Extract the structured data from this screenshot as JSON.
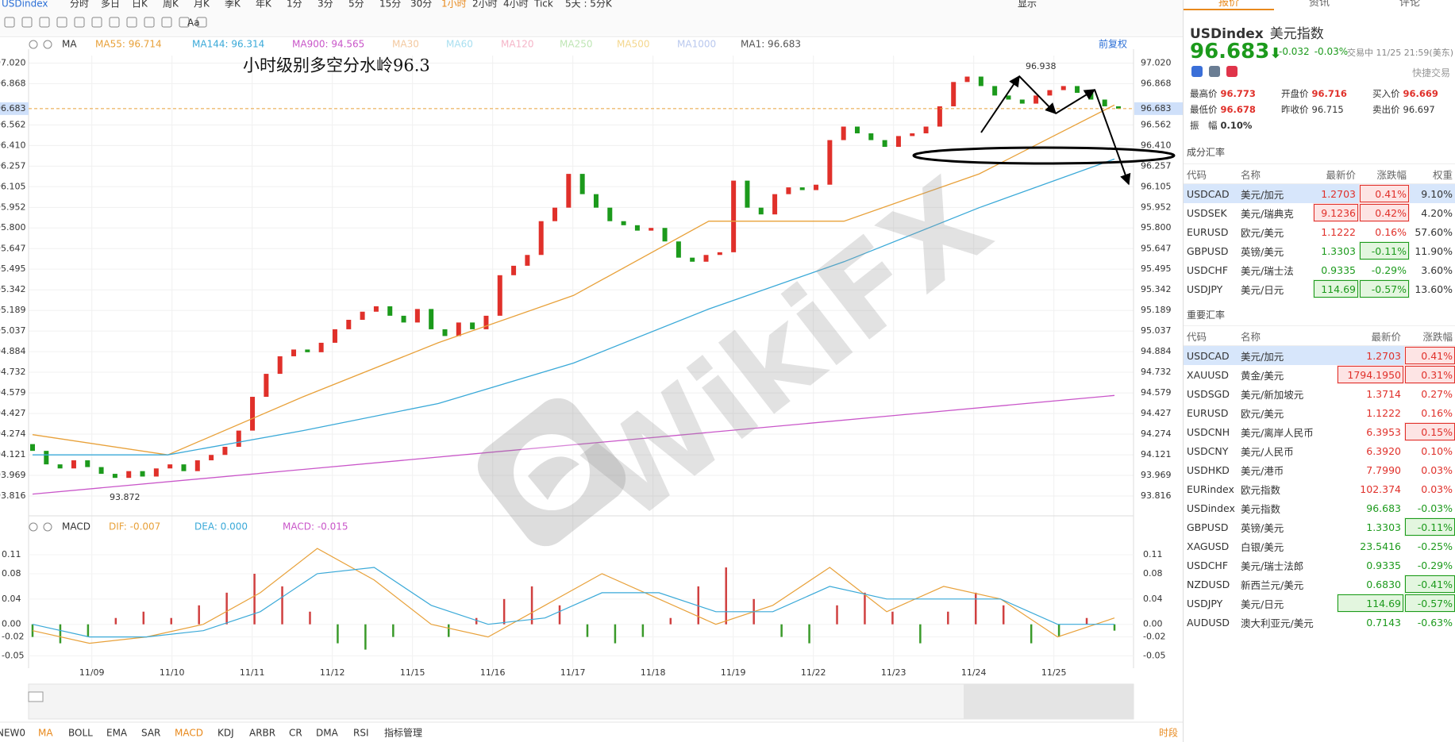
{
  "toolbar": {
    "symbol": "USDindex",
    "periods": [
      "分时",
      "多日",
      "日K",
      "周K",
      "月K",
      "季K",
      "年K",
      "1分",
      "3分",
      "5分",
      "15分",
      "30分",
      "1小时",
      "2小时",
      "4小时",
      "Tick",
      "5天 : 5分K"
    ],
    "display": "显示",
    "font_tool": "Aa"
  },
  "main_chart": {
    "indicator": "MA",
    "ma_legend": [
      {
        "label": "MA55: 96.714",
        "color": "#e8a13a"
      },
      {
        "label": "MA144: 96.314",
        "color": "#3aa9d8"
      },
      {
        "label": "MA900: 94.565",
        "color": "#c956c9"
      },
      {
        "label": "MA30",
        "color": "#f3c9a0"
      },
      {
        "label": "MA60",
        "color": "#a8dff0"
      },
      {
        "label": "MA120",
        "color": "#f5b5c8"
      },
      {
        "label": "MA250",
        "color": "#bfe6b5"
      },
      {
        "label": "MA500",
        "color": "#f4d78e"
      },
      {
        "label": "MA1000",
        "color": "#b9c8ee"
      },
      {
        "label": "MA1: 96.683",
        "color": "#555555"
      }
    ],
    "adjust": "前复权",
    "annotation": "小时级别多空分水岭96.3",
    "price_ticks": [
      "97.020",
      "96.868",
      "96.562",
      "96.410",
      "96.257",
      "96.105",
      "95.952",
      "95.800",
      "95.647",
      "95.495",
      "95.342",
      "95.189",
      "95.037",
      "94.884",
      "94.732",
      "94.579",
      "94.427",
      "94.274",
      "94.121",
      "93.969",
      "93.816"
    ],
    "current_price": "96.683",
    "high_label": "96.938",
    "low_label": "93.872",
    "dates": [
      "11/09",
      "11/10",
      "11/11",
      "11/12",
      "11/15",
      "11/16",
      "11/17",
      "11/18",
      "11/19",
      "11/22",
      "11/23",
      "11/24",
      "11/25"
    ],
    "watermark": "WikiFX"
  },
  "series": {
    "first_open": 94.2,
    "closes": [
      94.15,
      94.05,
      94.02,
      94.08,
      94.03,
      93.98,
      93.95,
      94.0,
      93.96,
      94.02,
      94.05,
      94.0,
      94.08,
      94.12,
      94.18,
      94.3,
      94.55,
      94.72,
      94.85,
      94.9,
      94.88,
      94.95,
      95.05,
      95.12,
      95.18,
      95.22,
      95.15,
      95.1,
      95.2,
      95.05,
      95.0,
      95.1,
      95.05,
      95.15,
      95.45,
      95.52,
      95.6,
      95.85,
      95.95,
      96.2,
      96.05,
      95.95,
      95.85,
      95.82,
      95.78,
      95.8,
      95.7,
      95.58,
      95.55,
      95.6,
      95.62,
      96.15,
      95.95,
      95.9,
      96.05,
      96.1,
      96.08,
      96.12,
      96.45,
      96.55,
      96.5,
      96.45,
      96.4,
      96.48,
      96.5,
      96.55,
      96.7,
      96.88,
      96.92,
      96.85,
      96.78,
      96.75,
      96.72,
      96.78,
      96.82,
      96.85,
      96.8,
      96.75,
      96.7,
      96.683
    ],
    "ma55": [
      94.27,
      94.12,
      94.55,
      94.95,
      95.3,
      95.85,
      95.85,
      96.2,
      96.71
    ],
    "ma144": [
      94.12,
      94.12,
      94.3,
      94.5,
      94.8,
      95.2,
      95.55,
      95.95,
      96.31
    ],
    "ma900": [
      93.83,
      94.56
    ]
  },
  "macd_chart": {
    "indicator": "MACD",
    "legend": [
      {
        "label": "DIF: -0.007",
        "color": "#e8a13a"
      },
      {
        "label": "DEA: 0.000",
        "color": "#3aa9d8"
      },
      {
        "label": "MACD: -0.015",
        "color": "#c956c9"
      }
    ],
    "ticks": [
      "0.11",
      "0.08",
      "0.04",
      "0.00",
      "-0.02",
      "-0.05"
    ],
    "histogram": [
      -0.02,
      -0.03,
      -0.02,
      0.01,
      0.02,
      0.01,
      0.03,
      0.05,
      0.08,
      0.06,
      0.02,
      -0.03,
      -0.04,
      -0.02,
      0.0,
      -0.02,
      0.01,
      0.04,
      0.06,
      0.03,
      -0.02,
      -0.03,
      -0.02,
      0.01,
      0.06,
      0.09,
      0.04,
      -0.02,
      -0.03,
      0.03,
      0.05,
      0.02,
      -0.03,
      0.02,
      0.05,
      0.03,
      -0.03,
      -0.02,
      0.01,
      -0.01
    ],
    "dif": [
      -0.01,
      -0.03,
      -0.02,
      0.0,
      0.05,
      0.12,
      0.07,
      0.0,
      -0.02,
      0.03,
      0.08,
      0.04,
      0.0,
      0.03,
      0.09,
      0.02,
      0.06,
      0.04,
      -0.02,
      0.01
    ],
    "dea": [
      0.0,
      -0.02,
      -0.02,
      -0.01,
      0.02,
      0.08,
      0.09,
      0.03,
      0.0,
      0.01,
      0.05,
      0.05,
      0.02,
      0.02,
      0.06,
      0.04,
      0.04,
      0.04,
      0.0,
      0.0
    ]
  },
  "bottom_bar": {
    "items": [
      "NEW0",
      "MA",
      "BOLL",
      "EMA",
      "SAR",
      "MACD",
      "KDJ",
      "ARBR",
      "CR",
      "DMA",
      "RSI",
      "指标管理"
    ],
    "session": "时段"
  },
  "quote_panel": {
    "tabs": [
      "报价",
      "资讯",
      "评论"
    ],
    "symbol": "USDindex",
    "name": "美元指数",
    "price": "96.683",
    "arrow": "⬇",
    "change": "-0.032",
    "change_pct": "-0.03%",
    "status": "交易中 11/25 21:59(美东)",
    "quick_trade": "快捷交易",
    "stats": [
      [
        "最高价",
        "96.773"
      ],
      [
        "开盘价",
        "96.716"
      ],
      [
        "买入价",
        "96.669"
      ],
      [
        "最低价",
        "96.678"
      ],
      [
        "昨收价",
        "96.715"
      ],
      [
        "卖出价",
        "96.697"
      ],
      [
        "振　幅",
        "0.10%"
      ]
    ],
    "components": {
      "title": "成分汇率",
      "header": [
        "代码",
        "名称",
        "最新价",
        "涨跌幅",
        "权重"
      ],
      "rows": [
        [
          "USDCAD",
          "美元/加元",
          "1.2703",
          "0.41%",
          "9.10%"
        ],
        [
          "USDSEK",
          "美元/瑞典克",
          "9.1236",
          "0.42%",
          "4.20%"
        ],
        [
          "EURUSD",
          "欧元/美元",
          "1.1222",
          "0.16%",
          "57.60%"
        ],
        [
          "GBPUSD",
          "英镑/美元",
          "1.3303",
          "-0.11%",
          "11.90%"
        ],
        [
          "USDCHF",
          "美元/瑞士法",
          "0.9335",
          "-0.29%",
          "3.60%"
        ],
        [
          "USDJPY",
          "美元/日元",
          "114.69",
          "-0.57%",
          "13.60%"
        ]
      ]
    },
    "major": {
      "title": "重要汇率",
      "header": [
        "代码",
        "名称",
        "最新价",
        "涨跌幅"
      ],
      "rows": [
        [
          "USDCAD",
          "美元/加元",
          "1.2703",
          "0.41%"
        ],
        [
          "XAUUSD",
          "黄金/美元",
          "1794.1950",
          "0.31%"
        ],
        [
          "USDSGD",
          "美元/新加坡元",
          "1.3714",
          "0.27%"
        ],
        [
          "EURUSD",
          "欧元/美元",
          "1.1222",
          "0.16%"
        ],
        [
          "USDCNH",
          "美元/离岸人民币",
          "6.3953",
          "0.15%"
        ],
        [
          "USDCNY",
          "美元/人民币",
          "6.3920",
          "0.10%"
        ],
        [
          "USDHKD",
          "美元/港币",
          "7.7990",
          "0.03%"
        ],
        [
          "EURindex",
          "欧元指数",
          "102.374",
          "0.03%"
        ],
        [
          "USDindex",
          "美元指数",
          "96.683",
          "-0.03%"
        ],
        [
          "GBPUSD",
          "英镑/美元",
          "1.3303",
          "-0.11%"
        ],
        [
          "XAGUSD",
          "白银/美元",
          "23.5416",
          "-0.25%"
        ],
        [
          "USDCHF",
          "美元/瑞士法郎",
          "0.9335",
          "-0.29%"
        ],
        [
          "NZDUSD",
          "新西兰元/美元",
          "0.6830",
          "-0.41%"
        ],
        [
          "USDJPY",
          "美元/日元",
          "114.69",
          "-0.57%"
        ],
        [
          "AUDUSD",
          "澳大利亚元/美元",
          "0.7143",
          "-0.63%"
        ]
      ]
    }
  }
}
